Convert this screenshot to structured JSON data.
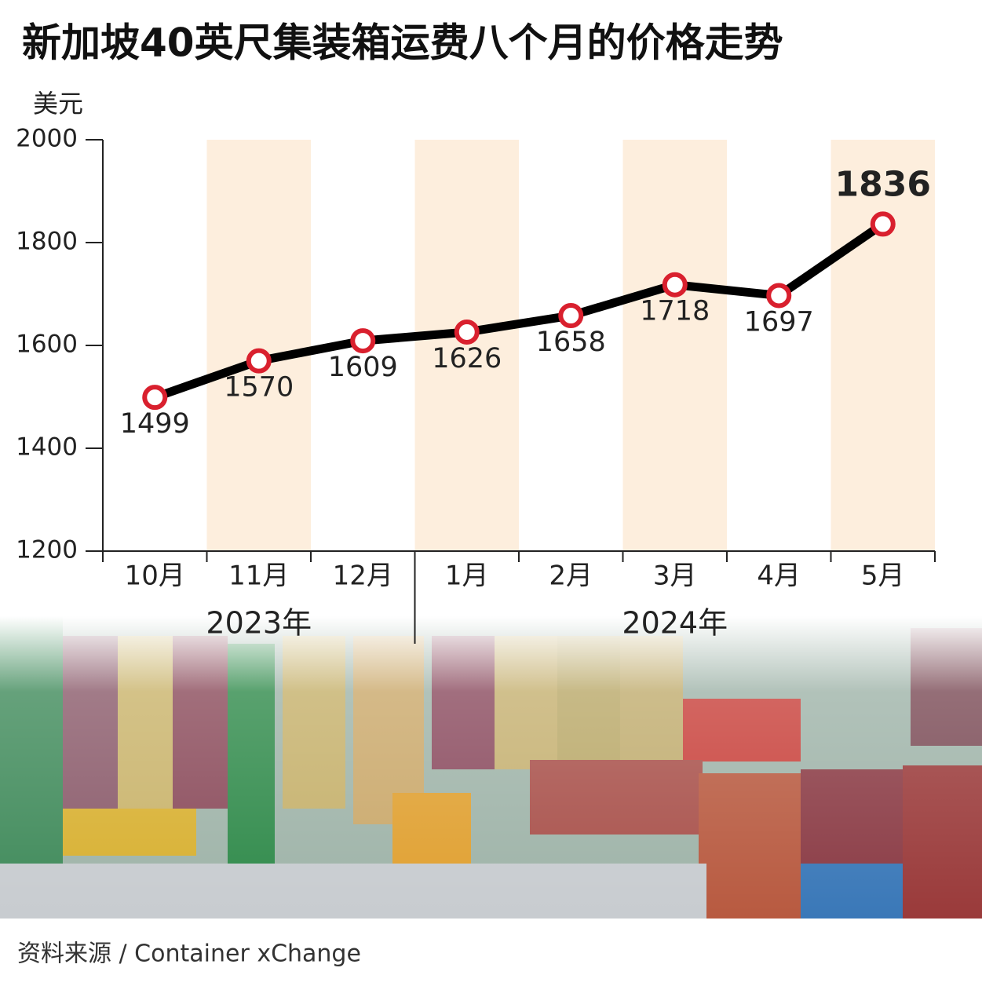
{
  "chart_data": {
    "type": "line",
    "title": "新加坡40英尺集装箱运费八个月的价格走势",
    "y_label": "美元",
    "categories": [
      "10月",
      "11月",
      "12月",
      "1月",
      "2月",
      "3月",
      "4月",
      "5月"
    ],
    "values": [
      1499,
      1570,
      1609,
      1626,
      1658,
      1718,
      1697,
      1836
    ],
    "year_groups": [
      {
        "label": "2023年",
        "categories": [
          "10月",
          "11月",
          "12月"
        ]
      },
      {
        "label": "2024年",
        "categories": [
          "1月",
          "2月",
          "3月",
          "4月",
          "5月"
        ]
      }
    ],
    "ylim": [
      1200,
      2000
    ],
    "yticks": [
      1200,
      1400,
      1600,
      1800,
      2000
    ],
    "color": "#000000",
    "marker_color": "#d9202e",
    "source": "资料来源 / Container xChange"
  }
}
